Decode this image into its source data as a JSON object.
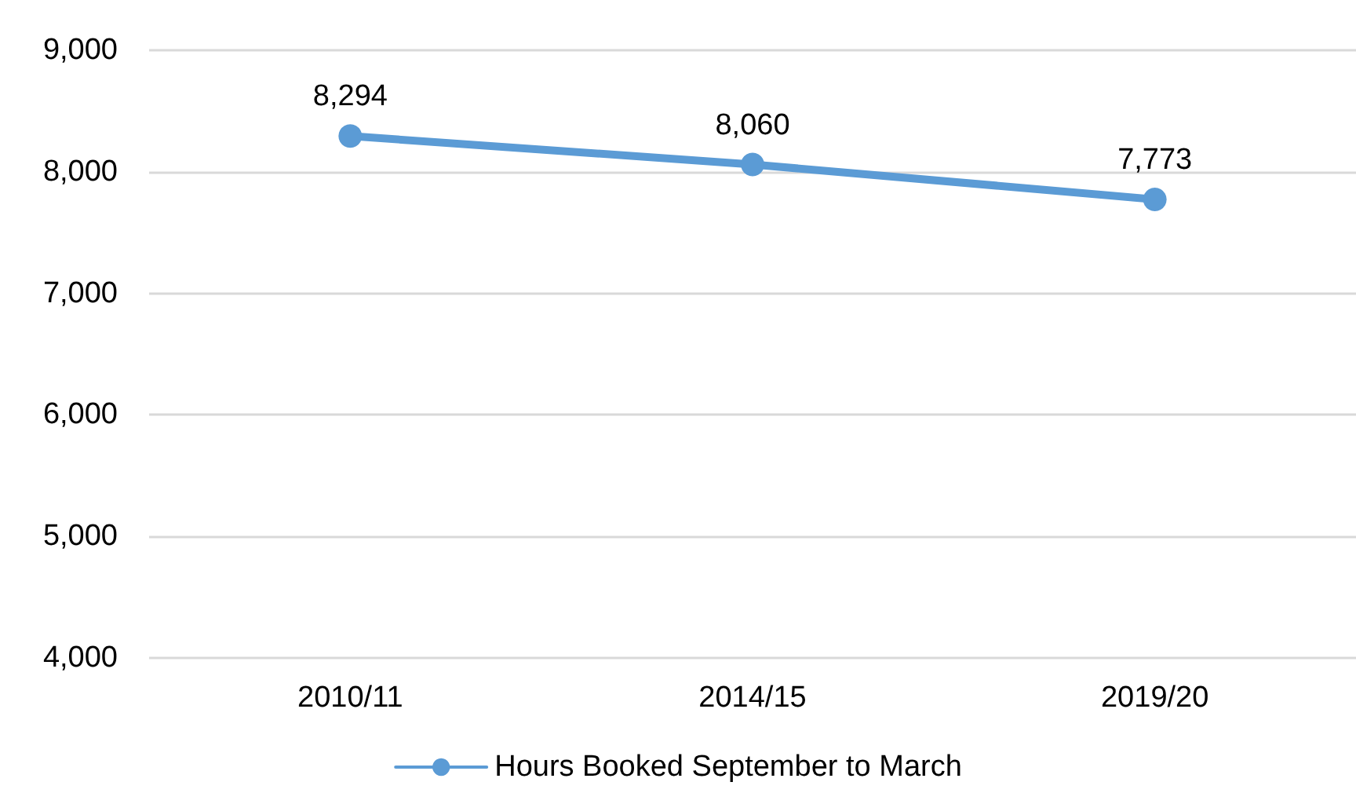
{
  "chart_data": {
    "type": "line",
    "categories": [
      "2010/11",
      "2014/15",
      "2019/20"
    ],
    "series": [
      {
        "name": "Hours Booked September to March",
        "color": "#5b9bd5",
        "values": [
          8294,
          8060,
          7773
        ],
        "value_labels": [
          "8,294",
          "8,060",
          "7,773"
        ]
      }
    ],
    "ylim": [
      4000,
      9000
    ],
    "yticks": [
      {
        "value": 4000,
        "label": "4,000"
      },
      {
        "value": 5000,
        "label": "5,000"
      },
      {
        "value": 6000,
        "label": "6,000"
      },
      {
        "value": 7000,
        "label": "7,000"
      },
      {
        "value": 8000,
        "label": "8,000"
      },
      {
        "value": 9000,
        "label": "9,000"
      }
    ],
    "grid": "y",
    "legend": "bottom",
    "marker": "circle",
    "line_style": "solid"
  }
}
